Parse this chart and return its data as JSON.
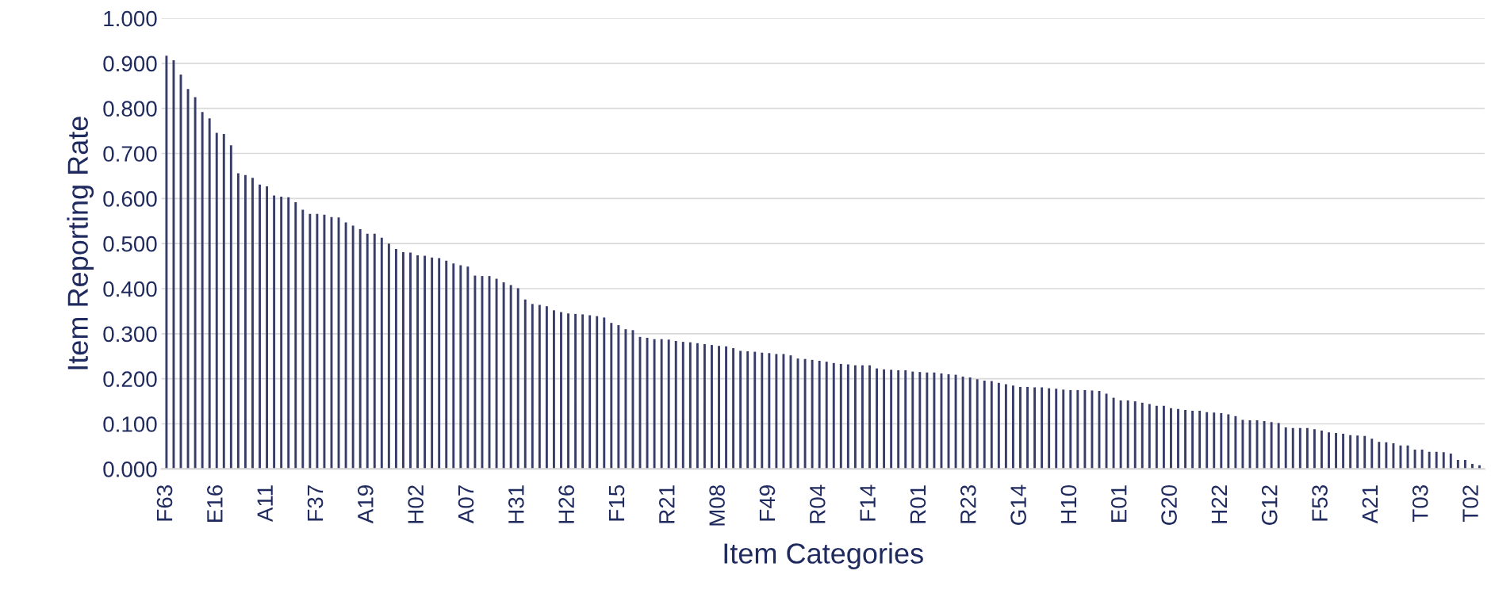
{
  "chart_data": {
    "type": "bar",
    "xlabel": "Item Categories",
    "ylabel": "Item Reporting Rate",
    "categories": [
      "F63",
      null,
      null,
      null,
      null,
      null,
      null,
      "E16",
      null,
      null,
      null,
      null,
      null,
      null,
      "A11",
      null,
      null,
      null,
      null,
      null,
      null,
      "F37",
      null,
      null,
      null,
      null,
      null,
      null,
      "A19",
      null,
      null,
      null,
      null,
      null,
      null,
      "H02",
      null,
      null,
      null,
      null,
      null,
      null,
      "A07",
      null,
      null,
      null,
      null,
      null,
      null,
      "H31",
      null,
      null,
      null,
      null,
      null,
      null,
      "H26",
      null,
      null,
      null,
      null,
      null,
      null,
      "F15",
      null,
      null,
      null,
      null,
      null,
      null,
      "R21",
      null,
      null,
      null,
      null,
      null,
      null,
      "M08",
      null,
      null,
      null,
      null,
      null,
      null,
      "F49",
      null,
      null,
      null,
      null,
      null,
      null,
      "R04",
      null,
      null,
      null,
      null,
      null,
      null,
      "F14",
      null,
      null,
      null,
      null,
      null,
      null,
      "R01",
      null,
      null,
      null,
      null,
      null,
      null,
      "R23",
      null,
      null,
      null,
      null,
      null,
      null,
      "G14",
      null,
      null,
      null,
      null,
      null,
      null,
      "H10",
      null,
      null,
      null,
      null,
      null,
      null,
      "E01",
      null,
      null,
      null,
      null,
      null,
      null,
      "G20",
      null,
      null,
      null,
      null,
      null,
      null,
      "H22",
      null,
      null,
      null,
      null,
      null,
      null,
      "G12",
      null,
      null,
      null,
      null,
      null,
      null,
      "F53",
      null,
      null,
      null,
      null,
      null,
      null,
      "A21",
      null,
      null,
      null,
      null,
      null,
      null,
      "T03",
      null,
      null,
      null,
      null,
      null,
      null,
      "T02",
      null
    ],
    "values": [
      0.917,
      0.907,
      0.875,
      0.843,
      0.825,
      0.792,
      0.778,
      0.746,
      0.743,
      0.718,
      0.656,
      0.652,
      0.646,
      0.631,
      0.627,
      0.607,
      0.604,
      0.603,
      0.592,
      0.575,
      0.566,
      0.566,
      0.564,
      0.559,
      0.558,
      0.547,
      0.54,
      0.532,
      0.522,
      0.522,
      0.513,
      0.5,
      0.488,
      0.481,
      0.48,
      0.474,
      0.473,
      0.469,
      0.468,
      0.462,
      0.456,
      0.452,
      0.449,
      0.429,
      0.428,
      0.428,
      0.422,
      0.414,
      0.408,
      0.401,
      0.376,
      0.366,
      0.364,
      0.361,
      0.352,
      0.348,
      0.345,
      0.344,
      0.343,
      0.341,
      0.339,
      0.336,
      0.324,
      0.319,
      0.31,
      0.308,
      0.293,
      0.291,
      0.288,
      0.288,
      0.287,
      0.284,
      0.282,
      0.281,
      0.279,
      0.277,
      0.275,
      0.273,
      0.272,
      0.268,
      0.262,
      0.261,
      0.26,
      0.258,
      0.257,
      0.255,
      0.255,
      0.252,
      0.245,
      0.244,
      0.242,
      0.24,
      0.238,
      0.235,
      0.233,
      0.232,
      0.23,
      0.23,
      0.23,
      0.223,
      0.221,
      0.22,
      0.219,
      0.219,
      0.216,
      0.215,
      0.214,
      0.214,
      0.212,
      0.21,
      0.209,
      0.205,
      0.203,
      0.199,
      0.196,
      0.195,
      0.191,
      0.188,
      0.185,
      0.182,
      0.182,
      0.181,
      0.181,
      0.179,
      0.178,
      0.176,
      0.175,
      0.175,
      0.175,
      0.174,
      0.173,
      0.167,
      0.158,
      0.152,
      0.152,
      0.15,
      0.147,
      0.144,
      0.14,
      0.14,
      0.135,
      0.133,
      0.131,
      0.129,
      0.129,
      0.126,
      0.125,
      0.124,
      0.121,
      0.117,
      0.109,
      0.108,
      0.108,
      0.106,
      0.104,
      0.102,
      0.092,
      0.091,
      0.091,
      0.091,
      0.088,
      0.085,
      0.081,
      0.08,
      0.078,
      0.075,
      0.074,
      0.073,
      0.067,
      0.06,
      0.059,
      0.057,
      0.052,
      0.052,
      0.043,
      0.043,
      0.038,
      0.038,
      0.037,
      0.034,
      0.02,
      0.02,
      0.011,
      0.008
    ],
    "color": "#383c68",
    "ylim": [
      0,
      1
    ],
    "yticks": [
      {
        "value": 0,
        "label": "0.000"
      },
      {
        "value": 0.1,
        "label": "0.100"
      },
      {
        "value": 0.2,
        "label": "0.200"
      },
      {
        "value": 0.3,
        "label": "0.300"
      },
      {
        "value": 0.4,
        "label": "0.400"
      },
      {
        "value": 0.5,
        "label": "0.500"
      },
      {
        "value": 0.6,
        "label": "0.600"
      },
      {
        "value": 0.7,
        "label": "0.700"
      },
      {
        "value": 0.8,
        "label": "0.800"
      },
      {
        "value": 0.9,
        "label": "0.900"
      },
      {
        "value": 1,
        "label": "1.000"
      }
    ],
    "grid": "y"
  }
}
